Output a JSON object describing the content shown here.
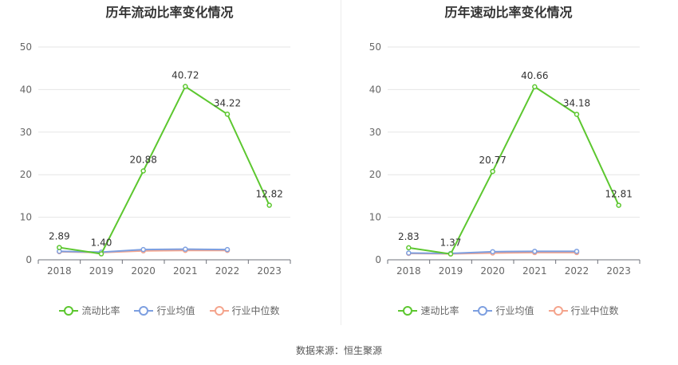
{
  "chart_data": [
    {
      "type": "line",
      "title": "历年流动比率变化情况",
      "categories": [
        "2018",
        "2019",
        "2020",
        "2021",
        "2022",
        "2023"
      ],
      "ylim": [
        0,
        50
      ],
      "yticks": [
        "0",
        "10",
        "20",
        "30",
        "40",
        "50"
      ],
      "grid": true,
      "legend_position": "bottom",
      "series": [
        {
          "name": "流动比率",
          "color": "#5cc72f",
          "values": [
            2.89,
            1.4,
            20.88,
            40.72,
            34.22,
            12.82
          ],
          "labels": [
            "2.89",
            "1.40",
            "20.88",
            "40.72",
            "34.22",
            "12.82"
          ]
        },
        {
          "name": "行业均值",
          "color": "#7d9fe0",
          "values": [
            2.0,
            1.8,
            2.4,
            2.5,
            2.4,
            null
          ]
        },
        {
          "name": "行业中位数",
          "color": "#f4a48c",
          "values": [
            1.9,
            1.7,
            2.1,
            2.2,
            2.2,
            null
          ]
        }
      ]
    },
    {
      "type": "line",
      "title": "历年速动比率变化情况",
      "categories": [
        "2018",
        "2019",
        "2020",
        "2021",
        "2022",
        "2023"
      ],
      "ylim": [
        0,
        50
      ],
      "yticks": [
        "0",
        "10",
        "20",
        "30",
        "40",
        "50"
      ],
      "grid": true,
      "legend_position": "bottom",
      "series": [
        {
          "name": "速动比率",
          "color": "#5cc72f",
          "values": [
            2.83,
            1.37,
            20.77,
            40.66,
            34.18,
            12.81
          ],
          "labels": [
            "2.83",
            "1.37",
            "20.77",
            "40.66",
            "34.18",
            "12.81"
          ]
        },
        {
          "name": "行业均值",
          "color": "#7d9fe0",
          "values": [
            1.6,
            1.5,
            1.9,
            2.0,
            2.0,
            null
          ]
        },
        {
          "name": "行业中位数",
          "color": "#f4a48c",
          "values": [
            1.5,
            1.4,
            1.6,
            1.7,
            1.7,
            null
          ]
        }
      ]
    }
  ],
  "source_text": "数据来源：恒生聚源"
}
